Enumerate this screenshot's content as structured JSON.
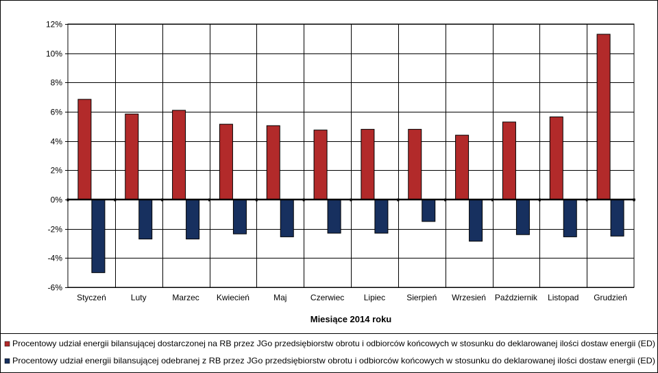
{
  "chart_data": {
    "type": "bar",
    "title": "",
    "xlabel": "Miesiące 2014 roku",
    "ylabel": "",
    "ylim": [
      -6,
      12
    ],
    "ytick_step": 2,
    "y_unit": "%",
    "grid": "horizontal and vertical",
    "legend_placement": "bottom",
    "categories": [
      "Styczeń",
      "Luty",
      "Marzec",
      "Kwiecień",
      "Maj",
      "Czerwiec",
      "Lipiec",
      "Sierpień",
      "Wrzesień",
      "Październik",
      "Listopad",
      "Grudzień"
    ],
    "series": [
      {
        "name": "Procentowy udział energii bilansującej dostarczonej na RB przez JGo przedsiębiorstw obrotu i odbiorców końcowych w stosunku do deklarowanej ilości dostaw energii (ED)",
        "color": "#b22a2a",
        "values": [
          6.85,
          5.85,
          6.1,
          5.15,
          5.05,
          4.75,
          4.8,
          4.8,
          4.4,
          5.3,
          5.65,
          11.3
        ]
      },
      {
        "name": "Procentowy udział energii bilansującej odebranej z RB przez JGo przedsiębiorstw obrotu i odbiorców końcowych w stosunku do deklarowanej ilości dostaw energii (ED)",
        "color": "#17305f",
        "values": [
          -5.0,
          -2.7,
          -2.7,
          -2.35,
          -2.55,
          -2.3,
          -2.3,
          -1.5,
          -2.85,
          -2.4,
          -2.55,
          -2.5
        ]
      }
    ]
  }
}
